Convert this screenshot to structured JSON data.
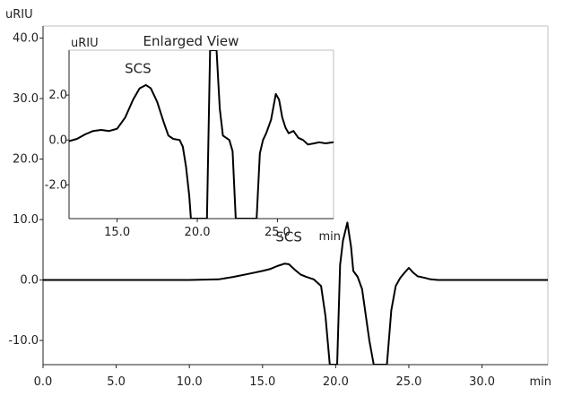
{
  "chart_data": [
    {
      "type": "line",
      "title": "",
      "xlabel": "min",
      "ylabel": "uRIU",
      "xlim": [
        0,
        34.5
      ],
      "ylim": [
        -14,
        42
      ],
      "grid": false,
      "x_ticks": [
        0,
        5,
        10,
        15,
        20,
        25,
        30
      ],
      "x_tick_labels": [
        "0.0",
        "5.0",
        "10.0",
        "15.0",
        "20.0",
        "25.0",
        "30.0"
      ],
      "y_ticks": [
        -10,
        0,
        10,
        20,
        30,
        40
      ],
      "y_tick_labels": [
        "-10.0",
        "0.0",
        "10.0",
        "20.0",
        "30.0",
        "40.0"
      ],
      "annotations": [
        {
          "text": "SCS",
          "x": 16.8,
          "y": 2.5
        }
      ],
      "series": [
        {
          "x": [
            0,
            4,
            10,
            12,
            13,
            14,
            15,
            15.5,
            16,
            16.5,
            16.8,
            17.2,
            17.6,
            18,
            18.5,
            19,
            19.3,
            19.6,
            19.9,
            20.1,
            20.3,
            20.5,
            20.8,
            21.05,
            21.2,
            21.5,
            21.8,
            22.3,
            22.6,
            22.9,
            23.2,
            23.5,
            23.8,
            24.1,
            24.4,
            24.7,
            25.0,
            25.3,
            25.6,
            26.0,
            26.5,
            27,
            28,
            30,
            33,
            34.5
          ],
          "y": [
            0,
            0,
            0,
            0.1,
            0.5,
            1.0,
            1.5,
            1.8,
            2.3,
            2.7,
            2.6,
            1.7,
            0.9,
            0.5,
            0.1,
            -1.0,
            -6.0,
            -14.0,
            -14.0,
            -14.0,
            2.5,
            6.5,
            9.5,
            5.5,
            1.5,
            0.5,
            -1.5,
            -10,
            -14.0,
            -14.0,
            -14.0,
            -14.0,
            -5,
            -1,
            0.3,
            1.2,
            2.0,
            1.2,
            0.6,
            0.4,
            0.1,
            0,
            0,
            0,
            0,
            0
          ]
        }
      ]
    },
    {
      "type": "line",
      "title": "Enlarged View",
      "xlabel": "min",
      "ylabel": "uRIU",
      "xlim": [
        12,
        28.5
      ],
      "ylim": [
        -3.5,
        4
      ],
      "grid": false,
      "x_ticks": [
        15,
        20,
        25
      ],
      "x_tick_labels": [
        "15.0",
        "20.0",
        "25.0"
      ],
      "y_ticks": [
        -2,
        0,
        2
      ],
      "y_tick_labels": [
        "-2.0",
        "0.0",
        "2.0"
      ],
      "annotations": [
        {
          "text": "SCS",
          "x": 16.3,
          "y": 2.75
        }
      ],
      "series": [
        {
          "x": [
            12,
            12.5,
            13,
            13.5,
            14,
            14.5,
            15,
            15.5,
            16,
            16.4,
            16.8,
            17.1,
            17.5,
            17.9,
            18.2,
            18.5,
            18.9,
            19.1,
            19.3,
            19.5,
            19.6,
            20.6,
            20.8,
            21.0,
            21.2,
            21.4,
            21.6,
            21.8,
            22.0,
            22.2,
            22.4,
            23.7,
            23.9,
            24.1,
            24.3,
            24.6,
            24.9,
            25.1,
            25.3,
            25.5,
            25.7,
            26.0,
            26.3,
            26.6,
            26.9,
            27.3,
            27.6,
            28.0,
            28.5
          ],
          "y": [
            -0.05,
            0.05,
            0.25,
            0.4,
            0.45,
            0.4,
            0.5,
            1.0,
            1.8,
            2.3,
            2.45,
            2.3,
            1.7,
            0.8,
            0.2,
            0.05,
            0.0,
            -0.3,
            -1.2,
            -2.5,
            -3.5,
            -3.5,
            4,
            4,
            4,
            1.4,
            0.2,
            0.1,
            0.0,
            -0.5,
            -3.5,
            -3.5,
            -0.6,
            0.0,
            0.3,
            0.9,
            2.05,
            1.8,
            1.0,
            0.55,
            0.3,
            0.4,
            0.1,
            0.0,
            -0.2,
            -0.15,
            -0.1,
            -0.15,
            -0.1
          ]
        }
      ]
    }
  ]
}
